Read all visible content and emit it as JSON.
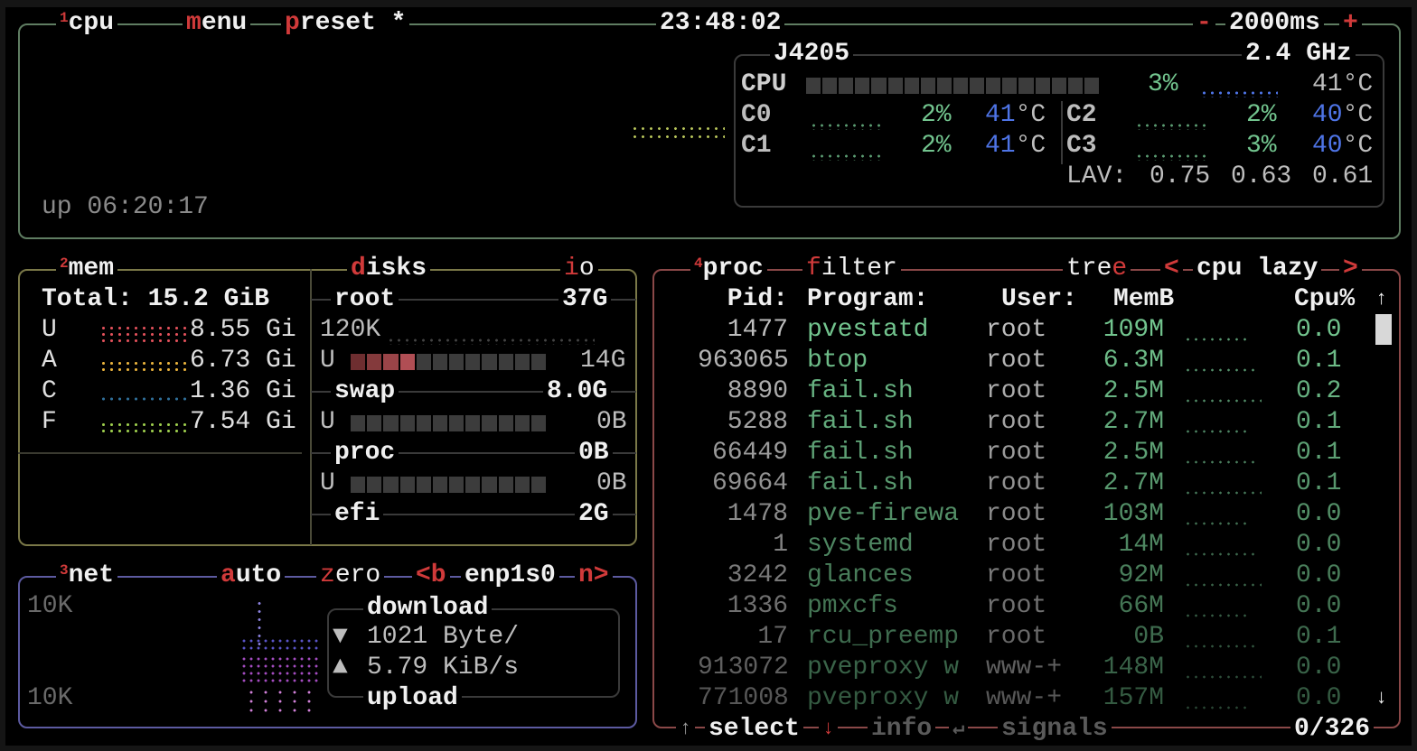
{
  "cpu_box": {
    "number": "1",
    "title": "cpu",
    "menu": "menu",
    "preset": "preset *",
    "clock": "23:48:02",
    "interval_minus": "-",
    "interval": "2000ms",
    "interval_plus": "+",
    "uptime": "up 06:20:17",
    "model": "J4205",
    "freq": "2.4 GHz",
    "total": {
      "label": "CPU",
      "percent": "3%",
      "temp": "41°C",
      "usage_fraction": 0.03
    },
    "cores": [
      {
        "label": "C0",
        "percent": "2%",
        "temp_val": "41",
        "temp_unit": "°C"
      },
      {
        "label": "C1",
        "percent": "2%",
        "temp_val": "41",
        "temp_unit": "°C"
      },
      {
        "label": "C2",
        "percent": "2%",
        "temp_val": "40",
        "temp_unit": "°C"
      },
      {
        "label": "C3",
        "percent": "3%",
        "temp_val": "40",
        "temp_unit": "°C"
      }
    ],
    "lav_label": "LAV:",
    "lav": [
      "0.75",
      "0.63",
      "0.61"
    ]
  },
  "mem_box": {
    "number": "2",
    "title": "mem",
    "total_label": "Total:",
    "total": "15.2 GiB",
    "rows": [
      {
        "label": "U",
        "value": "8.55 Gi",
        "color": "#e0505a"
      },
      {
        "label": "A",
        "value": "6.73 Gi",
        "color": "#e8b23c"
      },
      {
        "label": "C",
        "value": "1.36 Gi",
        "color": "#2f6f9a"
      },
      {
        "label": "F",
        "value": "7.54 Gi",
        "color": "#9ccc4c"
      }
    ]
  },
  "disks_box": {
    "title": "disks",
    "io": "io",
    "disks": [
      {
        "name": "root",
        "size": "37G",
        "io": "120K",
        "used_label": "U",
        "used": "14G",
        "used_fraction": 0.33
      },
      {
        "name": "swap",
        "size": "8.0G",
        "used_label": "U",
        "used": "0B",
        "used_fraction": 0
      },
      {
        "name": "proc",
        "size": "0B",
        "used_label": "U",
        "used": "0B",
        "used_fraction": 0
      },
      {
        "name": "efi",
        "size": "2G"
      }
    ]
  },
  "net_box": {
    "number": "3",
    "title": "net",
    "auto": "auto",
    "zero": "zero",
    "prev": "<b",
    "interface": "enp1s0",
    "next": "n>",
    "scale_top": "10K",
    "scale_bottom": "10K",
    "download_label": "download",
    "download": "1021 Byte/",
    "upload_label": "upload",
    "upload": "5.79 KiB/s",
    "down_icon": "▼",
    "up_icon": "▲"
  },
  "proc_box": {
    "number": "4",
    "title": "proc",
    "filter": "filter",
    "tree": "tree",
    "sort_prev": "<",
    "sort": "cpu lazy",
    "sort_next": ">",
    "headers": {
      "pid": "Pid:",
      "program": "Program:",
      "user": "User:",
      "mem": "MemB",
      "cpu": "Cpu%"
    },
    "rows": [
      {
        "pid": "1477",
        "program": "pvestatd",
        "user": "root",
        "mem": "109M",
        "cpu": "0.0"
      },
      {
        "pid": "963065",
        "program": "btop",
        "user": "root",
        "mem": "6.3M",
        "cpu": "0.1"
      },
      {
        "pid": "8890",
        "program": "fail.sh",
        "user": "root",
        "mem": "2.5M",
        "cpu": "0.2"
      },
      {
        "pid": "5288",
        "program": "fail.sh",
        "user": "root",
        "mem": "2.7M",
        "cpu": "0.1"
      },
      {
        "pid": "66449",
        "program": "fail.sh",
        "user": "root",
        "mem": "2.5M",
        "cpu": "0.1"
      },
      {
        "pid": "69664",
        "program": "fail.sh",
        "user": "root",
        "mem": "2.7M",
        "cpu": "0.1"
      },
      {
        "pid": "1478",
        "program": "pve-firewa",
        "user": "root",
        "mem": "103M",
        "cpu": "0.0"
      },
      {
        "pid": "1",
        "program": "systemd",
        "user": "root",
        "mem": "14M",
        "cpu": "0.0"
      },
      {
        "pid": "3242",
        "program": "glances",
        "user": "root",
        "mem": "92M",
        "cpu": "0.0"
      },
      {
        "pid": "1336",
        "program": "pmxcfs",
        "user": "root",
        "mem": "66M",
        "cpu": "0.0"
      },
      {
        "pid": "17",
        "program": "rcu_preemp",
        "user": "root",
        "mem": "0B",
        "cpu": "0.1"
      },
      {
        "pid": "913072",
        "program": "pveproxy w",
        "user": "www-+",
        "mem": "148M",
        "cpu": "0.0"
      },
      {
        "pid": "771008",
        "program": "pveproxy w",
        "user": "www-+",
        "mem": "157M",
        "cpu": "0.0"
      }
    ],
    "scroll_up": "↑",
    "scroll_down": "↓",
    "select_up": "↑",
    "select": "select",
    "select_down": "↓",
    "info": "info",
    "info_icon": "↵",
    "signals": "signals",
    "count": "0/326"
  },
  "colors": {
    "accent": "#d03a3a",
    "cpu_border": "#5f7d62",
    "mem_border": "#7a7848",
    "net_border": "#5c5aa0",
    "proc_border": "#8a4848",
    "value_green": "#72c48e",
    "temp_blue": "#4e74e6"
  }
}
